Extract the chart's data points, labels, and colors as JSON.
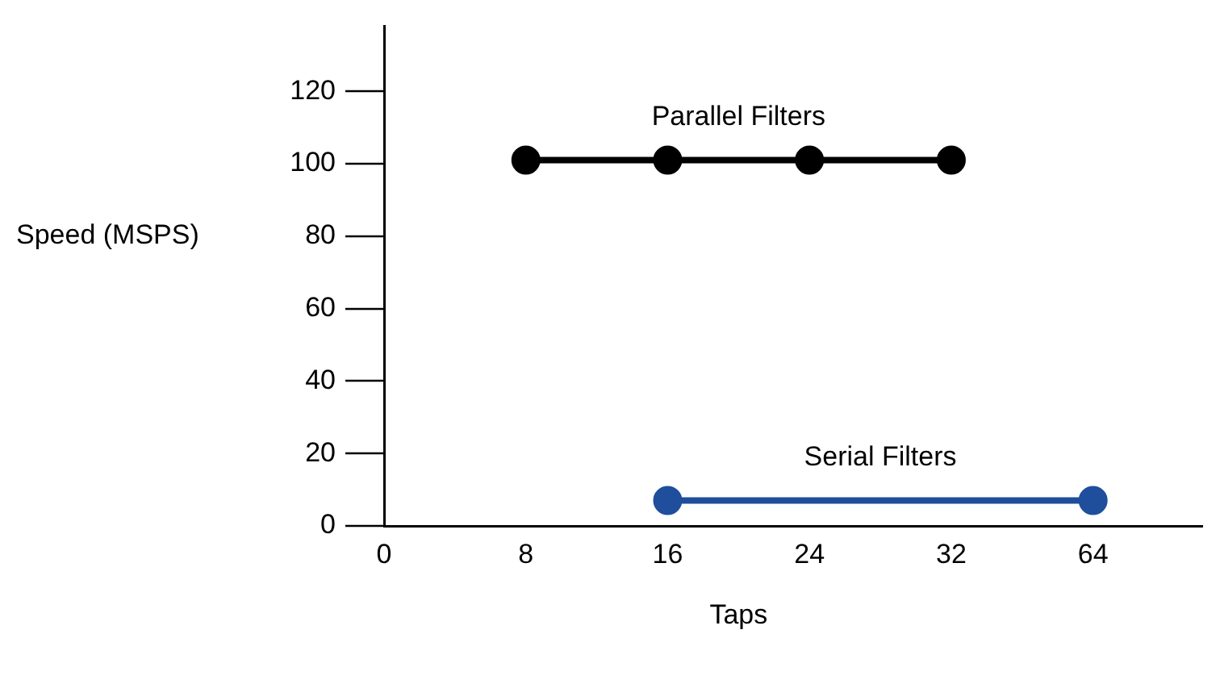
{
  "chart_data": {
    "type": "line",
    "xlabel": "Taps",
    "ylabel": "Speed (MSPS)",
    "categories": [
      "0",
      "8",
      "16",
      "24",
      "32",
      "64"
    ],
    "ylim": [
      0,
      138
    ],
    "yticks": [
      0,
      20,
      40,
      60,
      80,
      100,
      120
    ],
    "series": [
      {
        "name": "Parallel Filters",
        "color": "#000000",
        "x": [
          "8",
          "16",
          "24",
          "32"
        ],
        "values": [
          101,
          101,
          101,
          101
        ]
      },
      {
        "name": "Serial Filters",
        "color": "#1f4e9c",
        "x": [
          "16",
          "64"
        ],
        "values": [
          7,
          7
        ]
      }
    ],
    "marker": "circle",
    "line_style": "solid",
    "grid": false,
    "legend": false
  }
}
